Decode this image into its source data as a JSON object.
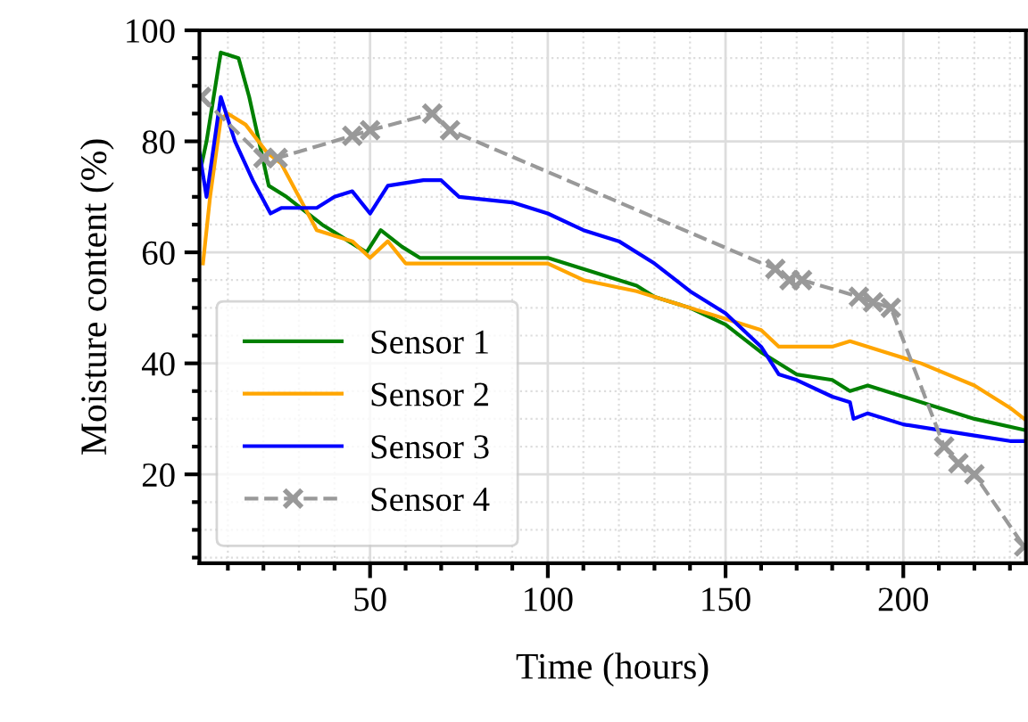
{
  "chart_data": {
    "type": "line",
    "xlabel": "Time (hours)",
    "ylabel": "Moisture content (%)",
    "xlim": [
      2,
      234.5
    ],
    "ylim": [
      4,
      100
    ],
    "xticks": [
      50,
      100,
      150,
      200
    ],
    "yticks": [
      20,
      40,
      60,
      80,
      100
    ],
    "grid": true,
    "legend": "bottom left",
    "series": [
      {
        "name": "Sensor 1",
        "color": "#008000",
        "line_style": "solid",
        "marker": "none",
        "x": [
          2,
          4,
          8,
          13,
          16,
          21.5,
          26.5,
          36.5,
          46.5,
          49,
          53,
          59,
          64,
          70,
          100,
          110,
          120,
          125,
          130,
          140,
          150,
          160,
          170,
          180,
          185,
          190,
          200,
          210,
          220,
          234
        ],
        "values": [
          74,
          80,
          96,
          95,
          88,
          72,
          70,
          65,
          61,
          60,
          64,
          61,
          59,
          59,
          59,
          57,
          55,
          54,
          52,
          50,
          47,
          42,
          38,
          37,
          35,
          36,
          34,
          32,
          30,
          28
        ]
      },
      {
        "name": "Sensor 2",
        "color": "#ffa500",
        "line_style": "solid",
        "marker": "none",
        "x": [
          3,
          5,
          8,
          10,
          15,
          21,
          25,
          30,
          35,
          45,
          50,
          55,
          60,
          100,
          110,
          125,
          135,
          150,
          160,
          165,
          180,
          185,
          195,
          205,
          220,
          230,
          234
        ],
        "values": [
          58,
          70,
          84,
          85,
          83,
          78,
          76,
          70,
          64,
          62,
          59,
          62,
          58,
          58,
          55,
          53,
          51,
          48,
          46,
          43,
          43,
          44,
          42,
          40,
          36,
          32,
          30
        ]
      },
      {
        "name": "Sensor 3",
        "color": "#0000ff",
        "line_style": "solid",
        "marker": "none",
        "x": [
          2,
          4,
          8,
          12,
          17,
          22,
          25,
          35,
          40,
          45,
          50,
          55,
          65,
          70,
          75,
          90,
          100,
          110,
          120,
          130,
          140,
          150,
          160,
          165,
          170,
          180,
          185,
          186,
          190,
          200,
          210,
          220,
          230,
          234
        ],
        "values": [
          78,
          70,
          88,
          80,
          73,
          67,
          68,
          68,
          70,
          71,
          67,
          72,
          73,
          73,
          70,
          69,
          67,
          64,
          62,
          58,
          53,
          49,
          43,
          38,
          37,
          34,
          33,
          30,
          31,
          29,
          28,
          27,
          26,
          26
        ]
      },
      {
        "name": "Sensor 4",
        "color": "#999999",
        "line_style": "dashed",
        "marker": "cross",
        "x": [
          2.5,
          20,
          24,
          45,
          50,
          67.5,
          72.5,
          164,
          168,
          171.5,
          187.5,
          191.5,
          196.5,
          211.5,
          215.5,
          220,
          234
        ],
        "values": [
          88,
          77,
          77,
          81,
          82,
          85,
          82,
          57,
          55,
          55,
          52,
          51,
          50,
          25,
          22,
          20,
          7
        ]
      }
    ]
  }
}
